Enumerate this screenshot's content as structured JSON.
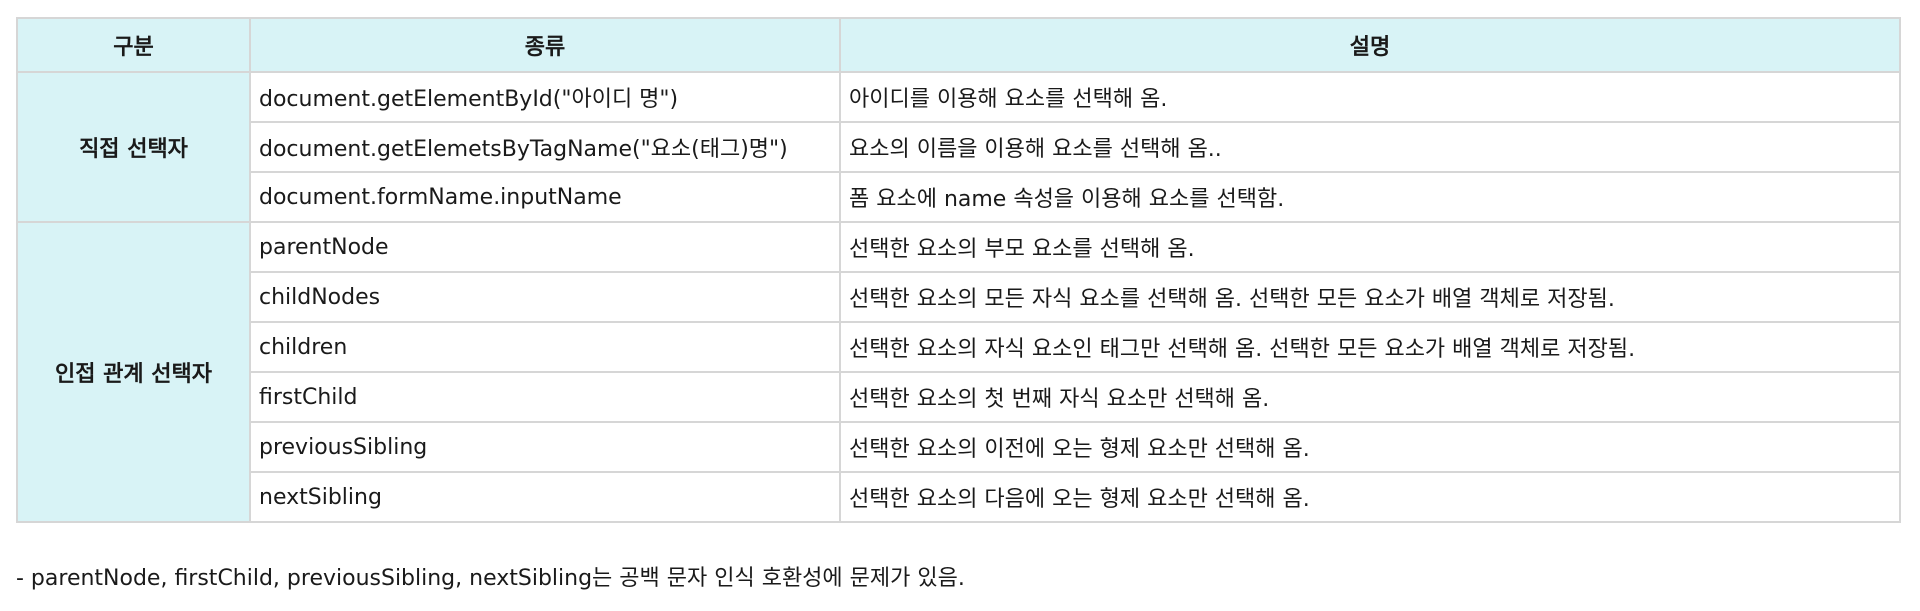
{
  "table": {
    "headers": [
      "구분",
      "종류",
      "설명"
    ],
    "groups": [
      {
        "label": "직접 선택자",
        "rows": [
          {
            "kind": "document.getElementById(\"아이디 명\")",
            "desc": "아이디를 이용해 요소를 선택해 옴."
          },
          {
            "kind": "document.getElemetsByTagName(\"요소(태그)명\")",
            "desc": "요소의 이름을 이용해 요소를 선택해 옴.."
          },
          {
            "kind": "document.formName.inputName",
            "desc": "폼 요소에 name 속성을 이용해 요소를 선택함."
          }
        ]
      },
      {
        "label": "인접 관계 선택자",
        "rows": [
          {
            "kind": "parentNode",
            "desc": "선택한 요소의 부모 요소를 선택해 옴."
          },
          {
            "kind": "childNodes",
            "desc": "선택한 요소의 모든 자식 요소를 선택해 옴. 선택한 모든 요소가 배열 객체로 저장됨."
          },
          {
            "kind": "children",
            "desc": "선택한 요소의 자식 요소인 태그만 선택해 옴. 선택한 모든 요소가 배열 객체로 저장됨."
          },
          {
            "kind": "firstChild",
            "desc": "선택한 요소의 첫 번째 자식 요소만 선택해 옴."
          },
          {
            "kind": "previousSibling",
            "desc": "선택한 요소의 이전에 오는 형제 요소만 선택해 옴."
          },
          {
            "kind": "nextSibling",
            "desc": "선택한 요소의 다음에 오는 형제 요소만 선택해 옴."
          }
        ]
      }
    ]
  },
  "note": "- parentNode, firstChild, previousSibling, nextSibling는 공백 문자 인식 호환성에 문제가 있음.",
  "colors": {
    "header_bg": "#d8f3f6",
    "border": "#d6d6d6"
  }
}
